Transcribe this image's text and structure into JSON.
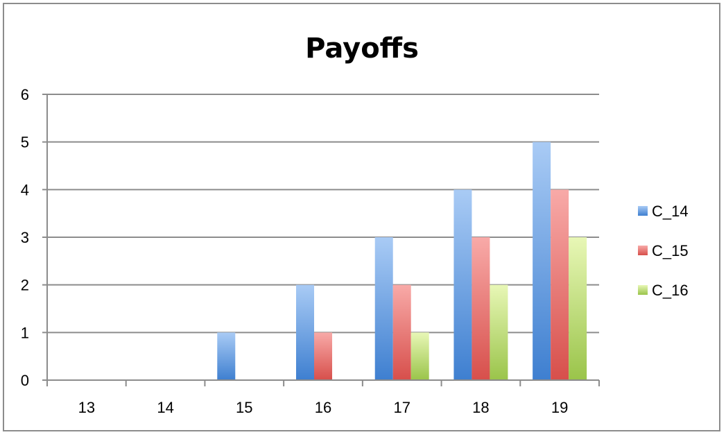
{
  "chart_data": {
    "type": "bar",
    "title": "Payoffs",
    "xlabel": "",
    "ylabel": "",
    "categories": [
      "13",
      "14",
      "15",
      "16",
      "17",
      "18",
      "19"
    ],
    "ylim": [
      0,
      6
    ],
    "yticks": [
      "0",
      "1",
      "2",
      "3",
      "4",
      "5",
      "6"
    ],
    "grid": true,
    "legend_position": "right",
    "series": [
      {
        "name": "C_14",
        "values": [
          0,
          0,
          1,
          2,
          3,
          4,
          5
        ],
        "color_light": "#a9cbf5",
        "color_dark": "#3e7fd0"
      },
      {
        "name": "C_15",
        "values": [
          0,
          0,
          0,
          1,
          2,
          3,
          4
        ],
        "color_light": "#f8aaa8",
        "color_dark": "#d74f4b"
      },
      {
        "name": "C_16",
        "values": [
          0,
          0,
          0,
          0,
          1,
          2,
          3
        ],
        "color_light": "#e8f7b6",
        "color_dark": "#9ac44a"
      }
    ]
  }
}
